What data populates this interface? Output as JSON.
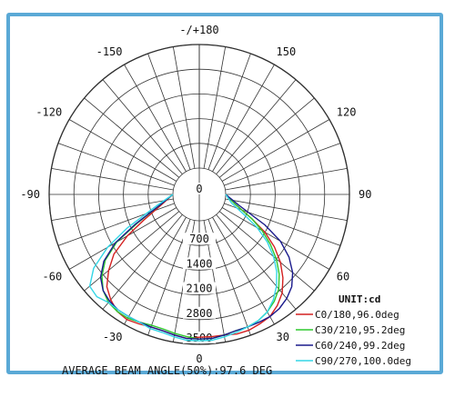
{
  "chart_data": {
    "type": "polar-line",
    "title": "",
    "unit": "UNIT:cd",
    "footer": "AVERAGE BEAM ANGLE(50%):97.6 DEG",
    "radial_ticks": [
      0,
      700,
      1400,
      2100,
      2800,
      3500
    ],
    "radial_range": [
      0,
      3500
    ],
    "angle_labels": [
      "-/+180",
      "150",
      "120",
      "90",
      "60",
      "30",
      "0",
      "-30",
      "-60",
      "-90",
      "-120",
      "-150"
    ],
    "angle_label_values": [
      180,
      150,
      120,
      90,
      60,
      30,
      0,
      -30,
      -60,
      -90,
      -120,
      -150
    ],
    "grid": true,
    "legend_position": "bottom-right",
    "series": [
      {
        "name": "C0/180,96.0deg",
        "color": "#d42020",
        "angles": [
          -90,
          -75,
          -65,
          -60,
          -55,
          -50,
          -45,
          -40,
          -35,
          -30,
          -25,
          -20,
          -15,
          -10,
          -5,
          0,
          5,
          10,
          15,
          20,
          25,
          30,
          35,
          40,
          45,
          50,
          55,
          60,
          65,
          75,
          90
        ],
        "values": [
          0,
          350,
          1000,
          1600,
          2200,
          2600,
          2950,
          3150,
          3300,
          3350,
          3300,
          3250,
          3250,
          3300,
          3350,
          3300,
          3300,
          3300,
          3350,
          3350,
          3300,
          3250,
          3100,
          2900,
          2600,
          2250,
          1850,
          1400,
          900,
          300,
          0
        ]
      },
      {
        "name": "C30/210,95.2deg",
        "color": "#2ec82e",
        "angles": [
          -90,
          -75,
          -65,
          -60,
          -55,
          -50,
          -45,
          -40,
          -35,
          -30,
          -25,
          -20,
          -15,
          -10,
          -5,
          0,
          5,
          10,
          15,
          20,
          25,
          30,
          35,
          40,
          45,
          50,
          55,
          60,
          65,
          75,
          90
        ],
        "values": [
          0,
          400,
          1200,
          1950,
          2500,
          2850,
          3100,
          3250,
          3300,
          3300,
          3250,
          3200,
          3200,
          3250,
          3300,
          3350,
          3350,
          3300,
          3250,
          3250,
          3200,
          3100,
          2950,
          2750,
          2450,
          2100,
          1700,
          1300,
          900,
          300,
          0
        ]
      },
      {
        "name": "C60/240,99.2deg",
        "color": "#1a1a8c",
        "angles": [
          -90,
          -75,
          -65,
          -60,
          -55,
          -50,
          -45,
          -40,
          -35,
          -30,
          -25,
          -20,
          -15,
          -10,
          -5,
          0,
          5,
          10,
          15,
          20,
          25,
          30,
          35,
          40,
          45,
          50,
          55,
          60,
          65,
          75,
          90
        ],
        "values": [
          0,
          400,
          1250,
          2000,
          2550,
          2900,
          3100,
          3200,
          3250,
          3250,
          3250,
          3250,
          3250,
          3300,
          3350,
          3350,
          3350,
          3300,
          3250,
          3250,
          3250,
          3250,
          3200,
          3100,
          2950,
          2700,
          2350,
          1900,
          1300,
          400,
          0
        ]
      },
      {
        "name": "C90/270,100.0deg",
        "color": "#33d6e6",
        "angles": [
          -90,
          -75,
          -65,
          -60,
          -55,
          -50,
          -45,
          -40,
          -35,
          -30,
          -25,
          -20,
          -15,
          -10,
          -5,
          0,
          5,
          10,
          15,
          20,
          25,
          30,
          35,
          40,
          45,
          50,
          55,
          60,
          65,
          75,
          90
        ],
        "values": [
          0,
          500,
          1500,
          2250,
          2900,
          3300,
          3350,
          3250,
          3250,
          3250,
          3250,
          3300,
          3300,
          3350,
          3400,
          3400,
          3400,
          3350,
          3300,
          3250,
          3200,
          3100,
          2900,
          2650,
          2350,
          2000,
          1600,
          1150,
          700,
          200,
          0
        ]
      }
    ]
  }
}
